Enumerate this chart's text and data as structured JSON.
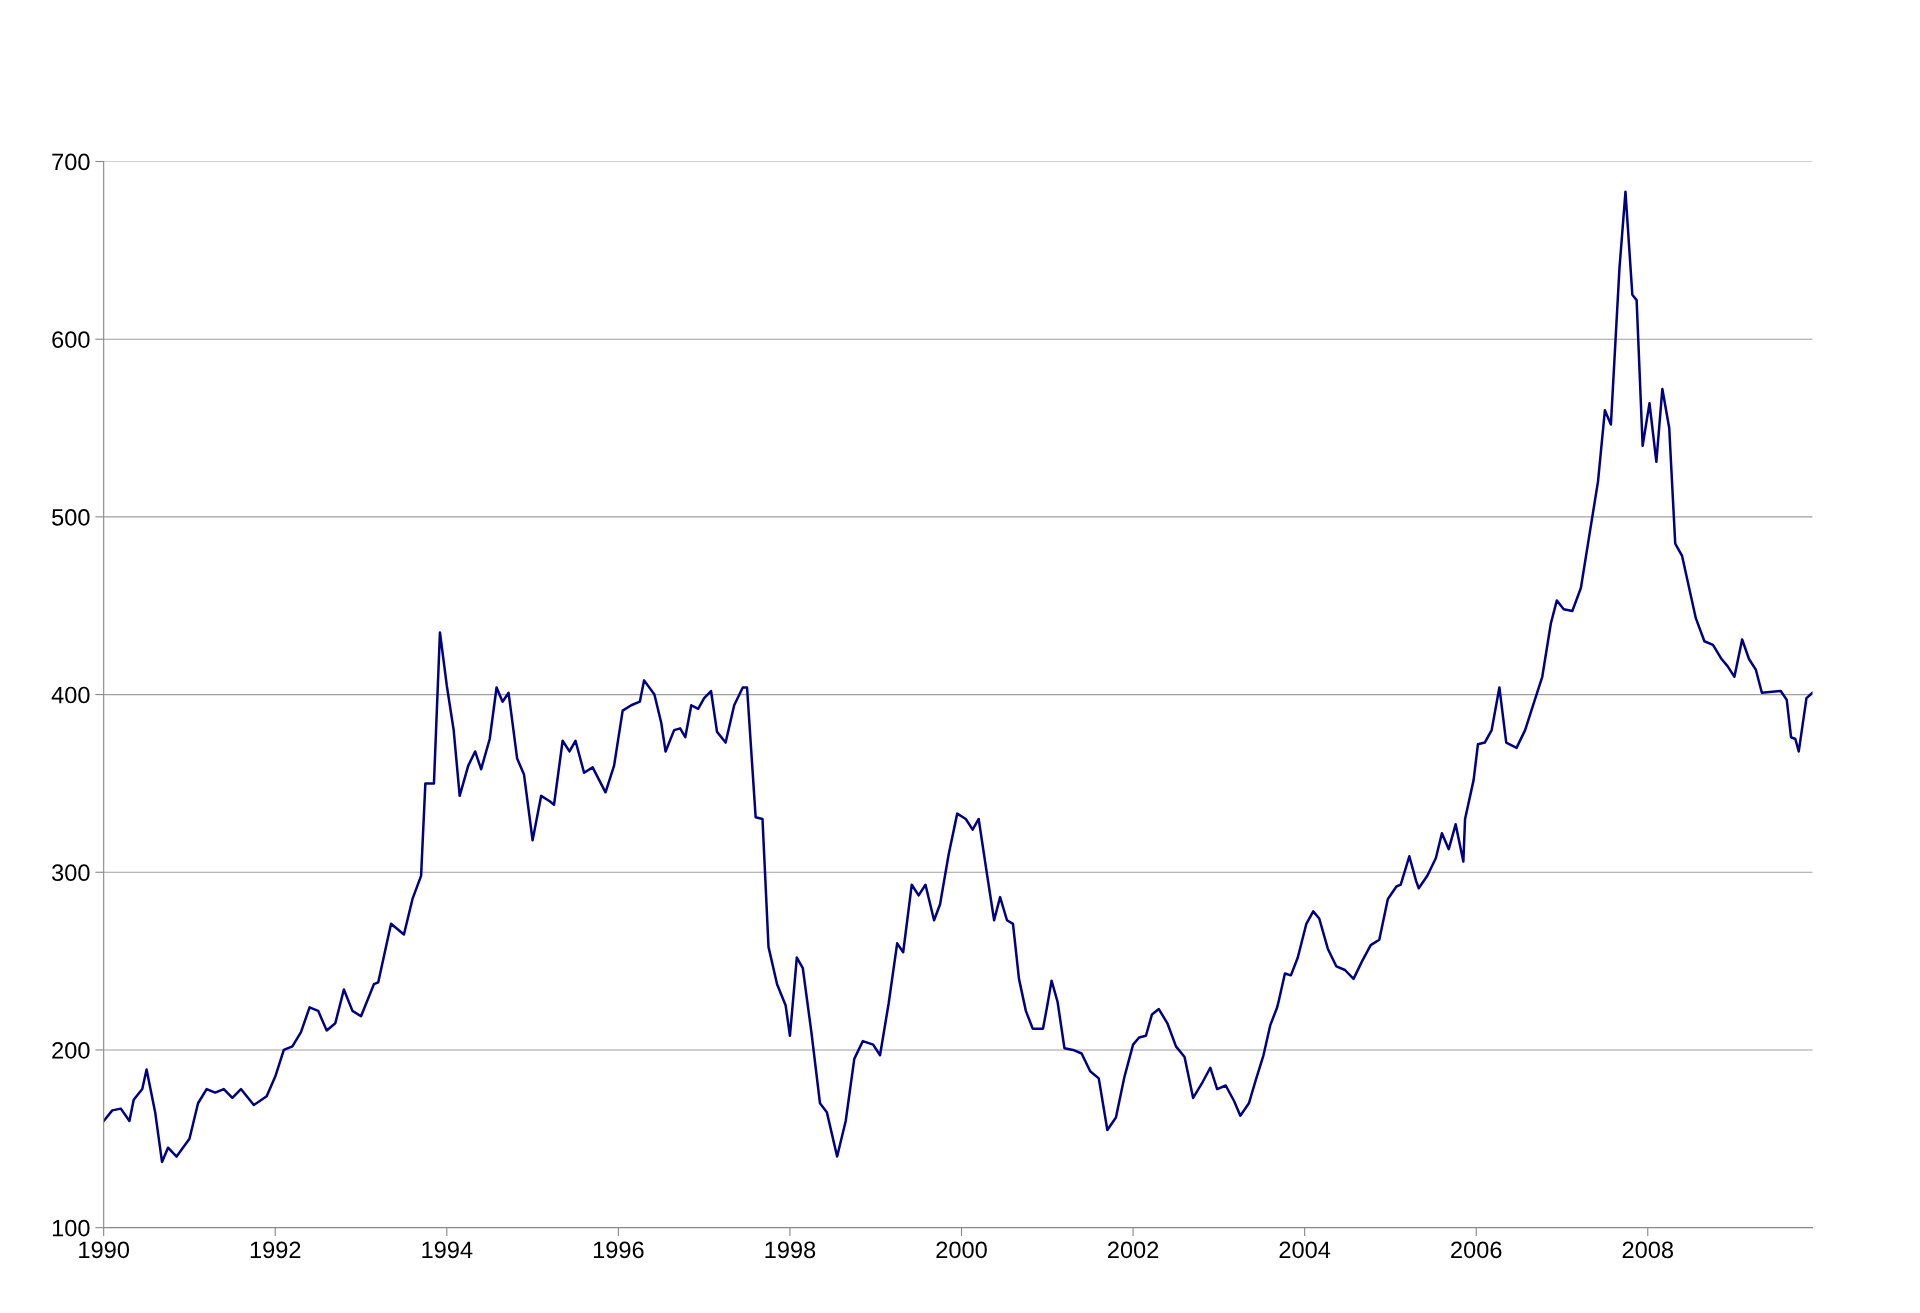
{
  "chart_data": {
    "type": "line",
    "xlim": [
      1990,
      2009.92
    ],
    "xticks": [
      1990,
      1992,
      1994,
      1996,
      1998,
      2000,
      2002,
      2004,
      2006,
      2008
    ],
    "ylim": [
      100,
      700
    ],
    "yticks": [
      100,
      200,
      300,
      400,
      500,
      600,
      700
    ],
    "grid": "y",
    "marker": "none",
    "line_style": "solid",
    "series": [
      {
        "color": "#000080",
        "x": [
          1990.0,
          1990.1,
          1990.2,
          1990.3,
          1990.35,
          1990.45,
          1990.5,
          1990.6,
          1990.68,
          1990.75,
          1990.85,
          1991.0,
          1991.1,
          1991.2,
          1991.3,
          1991.4,
          1991.5,
          1991.6,
          1991.75,
          1991.9,
          1992.0,
          1992.1,
          1992.2,
          1992.3,
          1992.4,
          1992.5,
          1992.6,
          1992.7,
          1992.8,
          1992.9,
          1993.0,
          1993.15,
          1993.2,
          1993.3,
          1993.35,
          1993.5,
          1993.6,
          1993.7,
          1993.75,
          1993.85,
          1993.92,
          1994.0,
          1994.08,
          1994.15,
          1994.25,
          1994.33,
          1994.4,
          1994.5,
          1994.58,
          1994.65,
          1994.72,
          1994.82,
          1994.9,
          1995.0,
          1995.1,
          1995.2,
          1995.25,
          1995.35,
          1995.43,
          1995.5,
          1995.6,
          1995.7,
          1995.85,
          1995.95,
          1996.05,
          1996.15,
          1996.25,
          1996.3,
          1996.42,
          1996.5,
          1996.55,
          1996.65,
          1996.72,
          1996.78,
          1996.85,
          1996.93,
          1997.0,
          1997.08,
          1997.15,
          1997.25,
          1997.35,
          1997.45,
          1997.5,
          1997.6,
          1997.68,
          1997.75,
          1997.85,
          1997.95,
          1998.0,
          1998.08,
          1998.15,
          1998.25,
          1998.35,
          1998.43,
          1998.55,
          1998.65,
          1998.75,
          1998.85,
          1998.97,
          1999.05,
          1999.15,
          1999.25,
          1999.32,
          1999.42,
          1999.5,
          1999.58,
          1999.68,
          1999.75,
          1999.85,
          1999.95,
          2000.05,
          2000.13,
          2000.2,
          2000.3,
          2000.38,
          2000.45,
          2000.53,
          2000.6,
          2000.67,
          2000.75,
          2000.83,
          2000.95,
          2001.0,
          2001.05,
          2001.12,
          2001.2,
          2001.3,
          2001.4,
          2001.5,
          2001.6,
          2001.7,
          2001.8,
          2001.9,
          2002.0,
          2002.07,
          2002.15,
          2002.22,
          2002.3,
          2002.4,
          2002.5,
          2002.6,
          2002.7,
          2002.8,
          2002.9,
          2002.98,
          2003.08,
          2003.18,
          2003.25,
          2003.35,
          2003.43,
          2003.52,
          2003.6,
          2003.68,
          2003.7,
          2003.77,
          2003.84,
          2003.92,
          2004.02,
          2004.1,
          2004.17,
          2004.27,
          2004.37,
          2004.47,
          2004.57,
          2004.67,
          2004.77,
          2004.87,
          2004.97,
          2005.07,
          2005.12,
          2005.22,
          2005.3,
          2005.33,
          2005.43,
          2005.53,
          2005.6,
          2005.68,
          2005.76,
          2005.85,
          2005.87,
          2005.97,
          2006.02,
          2006.1,
          2006.18,
          2006.27,
          2006.35,
          2006.47,
          2006.57,
          2006.67,
          2006.77,
          2006.87,
          2006.94,
          2007.02,
          2007.12,
          2007.22,
          2007.32,
          2007.42,
          2007.5,
          2007.57,
          2007.67,
          2007.74,
          2007.82,
          2007.87,
          2007.94,
          2008.02,
          2008.1,
          2008.17,
          2008.25,
          2008.32,
          2008.4,
          2008.56,
          2008.66,
          2008.76,
          2008.86,
          2008.93,
          2009.01,
          2009.1,
          2009.18,
          2009.26,
          2009.33,
          2009.55,
          2009.62,
          2009.67,
          2009.72,
          2009.76,
          2009.85,
          2009.92
        ],
        "values": [
          160,
          166,
          167,
          160,
          172,
          178,
          189,
          165,
          137,
          145,
          140,
          150,
          170,
          178,
          176,
          178,
          173,
          178,
          169,
          174,
          185,
          200,
          202,
          210,
          224,
          222,
          211,
          215,
          234,
          222,
          219,
          237,
          238,
          260,
          271,
          265,
          285,
          298,
          350,
          350,
          435,
          405,
          380,
          343,
          360,
          368,
          358,
          375,
          404,
          396,
          401,
          364,
          355,
          318,
          343,
          340,
          338,
          374,
          368,
          374,
          356,
          359,
          345,
          360,
          391,
          394,
          396,
          408,
          400,
          384,
          368,
          380,
          381,
          376,
          394,
          392,
          398,
          402,
          379,
          373,
          394,
          404,
          404,
          331,
          330,
          258,
          237,
          225,
          208,
          252,
          246,
          210,
          170,
          165,
          140,
          160,
          195,
          205,
          203,
          197,
          226,
          260,
          255,
          293,
          287,
          293,
          273,
          282,
          310,
          333,
          330,
          324,
          330,
          298,
          273,
          286,
          273,
          271,
          240,
          222,
          212,
          212,
          225,
          239,
          227,
          201,
          200,
          198,
          188,
          184,
          155,
          162,
          185,
          203,
          207,
          208,
          220,
          223,
          215,
          202,
          196,
          173,
          181,
          190,
          178,
          180,
          171,
          163,
          170,
          183,
          197,
          214,
          224,
          228,
          243,
          242,
          252,
          271,
          278,
          274,
          257,
          247,
          245,
          240,
          250,
          259,
          262,
          285,
          292,
          293,
          309,
          295,
          291,
          298,
          308,
          322,
          313,
          327,
          306,
          330,
          352,
          372,
          373,
          380,
          404,
          373,
          370,
          380,
          395,
          410,
          440,
          453,
          448,
          447,
          460,
          490,
          520,
          560,
          552,
          640,
          683,
          625,
          622,
          540,
          564,
          531,
          572,
          550,
          485,
          478,
          443,
          430,
          428,
          420,
          416,
          410,
          431,
          420,
          414,
          401,
          402,
          397,
          376,
          375,
          368,
          398,
          401
        ]
      }
    ]
  }
}
